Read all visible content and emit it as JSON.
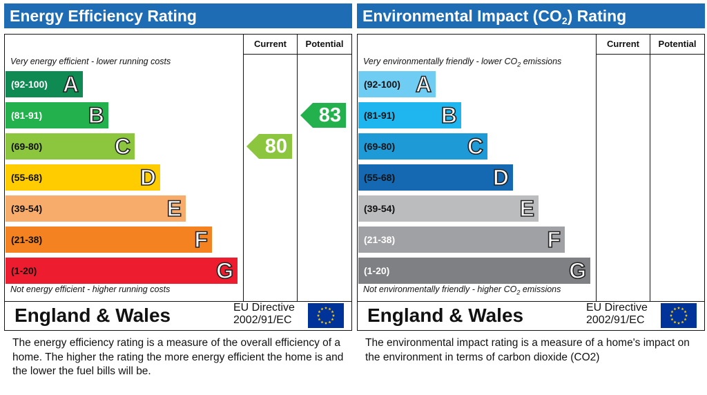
{
  "chart_data": [
    {
      "type": "bar",
      "title": "Energy Efficiency Rating",
      "columns": [
        "Current",
        "Potential"
      ],
      "top_caption": "Very energy efficient - lower running costs",
      "bottom_caption": "Not energy efficient - higher running costs",
      "bands": [
        {
          "range": "(92-100)",
          "letter": "A",
          "color": "#0f8a52"
        },
        {
          "range": "(81-91)",
          "letter": "B",
          "color": "#22b14c"
        },
        {
          "range": "(69-80)",
          "letter": "C",
          "color": "#8cc63f"
        },
        {
          "range": "(55-68)",
          "letter": "D",
          "color": "#ffcc00"
        },
        {
          "range": "(39-54)",
          "letter": "E",
          "color": "#f7ac6b"
        },
        {
          "range": "(21-38)",
          "letter": "F",
          "color": "#f48221"
        },
        {
          "range": "(1-20)",
          "letter": "G",
          "color": "#ed1c2e"
        }
      ],
      "current": {
        "value": 80,
        "band": "C",
        "color": "#8cc63f"
      },
      "potential": {
        "value": 83,
        "band": "B",
        "color": "#22b14c"
      },
      "region": "England & Wales",
      "directive_line1": "EU Directive",
      "directive_line2": "2002/91/EC",
      "description": "The energy efficiency rating is a measure of the overall efficiency of a home.  The higher the rating the more energy efficient the home is and the lower the fuel bills will be."
    },
    {
      "type": "bar",
      "title_prefix": "Environmental Impact (CO",
      "title_sub": "2",
      "title_suffix": ") Rating",
      "columns": [
        "Current",
        "Potential"
      ],
      "top_caption_prefix": "Very environmentally friendly - lower CO",
      "top_caption_sub": "2",
      "top_caption_suffix": " emissions",
      "bottom_caption_prefix": "Not environmentally friendly - higher CO",
      "bottom_caption_sub": "2",
      "bottom_caption_suffix": " emissions",
      "bands": [
        {
          "range": "(92-100)",
          "letter": "A",
          "color": "#6fcdf4"
        },
        {
          "range": "(81-91)",
          "letter": "B",
          "color": "#1fb5ef"
        },
        {
          "range": "(69-80)",
          "letter": "C",
          "color": "#1e9ad7"
        },
        {
          "range": "(55-68)",
          "letter": "D",
          "color": "#1469b2"
        },
        {
          "range": "(39-54)",
          "letter": "E",
          "color": "#bbbcbe"
        },
        {
          "range": "(21-38)",
          "letter": "F",
          "color": "#a0a1a4"
        },
        {
          "range": "(1-20)",
          "letter": "G",
          "color": "#7f8083"
        }
      ],
      "region": "England & Wales",
      "directive_line1": "EU Directive",
      "directive_line2": "2002/91/EC",
      "description": "The environmental impact rating is a measure of a home's impact on the environment in terms of carbon dioxide (CO2)"
    }
  ],
  "icons": {
    "flag": "eu-flag-icon"
  },
  "colors": {
    "title_bar": "#1e6cb3",
    "flag_blue": "#003399",
    "flag_star": "#ffcc00"
  }
}
